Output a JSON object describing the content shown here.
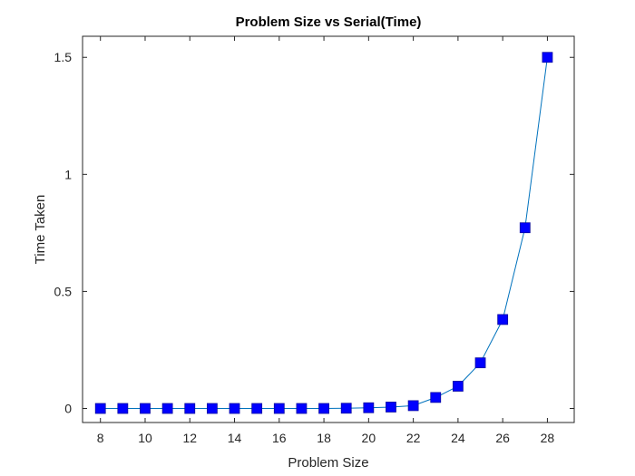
{
  "chart_data": {
    "type": "line",
    "title": "Problem Size vs Serial(Time)",
    "xlabel": "Problem Size",
    "ylabel": "Time Taken",
    "xlim": [
      7.2,
      29.2
    ],
    "ylim": [
      -0.06,
      1.59
    ],
    "xticks": [
      8,
      10,
      12,
      14,
      16,
      18,
      20,
      22,
      24,
      26,
      28
    ],
    "yticks": [
      0,
      0.5,
      1,
      1.5
    ],
    "ytick_labels": [
      "0",
      "0.5",
      "1",
      "1.5"
    ],
    "grid": false,
    "series": [
      {
        "line_color": "#0072BD",
        "marker": "square",
        "marker_color": "#0000FF",
        "x": [
          8,
          9,
          10,
          11,
          12,
          13,
          14,
          15,
          16,
          17,
          18,
          19,
          20,
          21,
          22,
          23,
          24,
          25,
          26,
          27,
          28
        ],
        "y": [
          0,
          0,
          0,
          0,
          0,
          0,
          0,
          0,
          0,
          0,
          0,
          0.001,
          0.003,
          0.006,
          0.012,
          0.047,
          0.095,
          0.195,
          0.38,
          0.772,
          1.5
        ]
      }
    ]
  }
}
